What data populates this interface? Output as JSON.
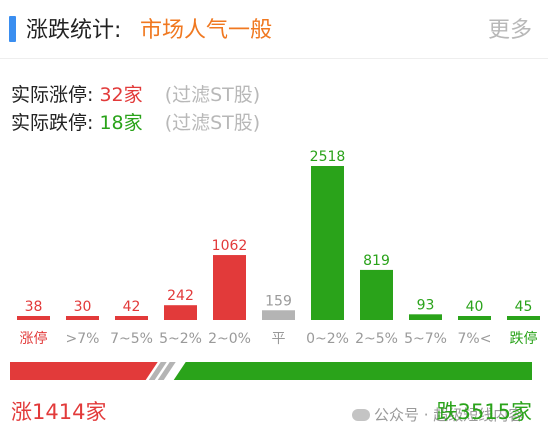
{
  "header": {
    "title": "涨跌统计:",
    "sentiment": "市场人气一般",
    "more_label": "更多"
  },
  "stats": {
    "limit_up_label": "实际涨停:",
    "limit_up_count": "32家",
    "limit_up_note": "(过滤ST股)",
    "limit_down_label": "实际跌停:",
    "limit_down_count": "18家",
    "limit_down_note": "(过滤ST股)"
  },
  "chart_data": {
    "type": "bar",
    "categories": [
      "涨停",
      ">7%",
      "7~5%",
      "5~2%",
      "2~0%",
      "平",
      "0~2%",
      "2~5%",
      "5~7%",
      "7%<",
      "跌停"
    ],
    "values": [
      38,
      30,
      42,
      242,
      1062,
      159,
      2518,
      819,
      93,
      40,
      45
    ],
    "bar_colors": [
      "#e23a3a",
      "#e23a3a",
      "#e23a3a",
      "#e23a3a",
      "#e23a3a",
      "#b4b4b4",
      "#2aa31a",
      "#2aa31a",
      "#2aa31a",
      "#2aa31a",
      "#2aa31a"
    ],
    "label_colors": [
      "#e23a3a",
      "#e23a3a",
      "#e23a3a",
      "#e23a3a",
      "#e23a3a",
      "#9a9a9a",
      "#2aa31a",
      "#2aa31a",
      "#2aa31a",
      "#2aa31a",
      "#2aa31a"
    ],
    "category_colors": [
      "#e23a3a",
      "#9a9a9a",
      "#9a9a9a",
      "#9a9a9a",
      "#9a9a9a",
      "#9a9a9a",
      "#9a9a9a",
      "#9a9a9a",
      "#9a9a9a",
      "#9a9a9a",
      "#2aa31a"
    ],
    "ylim": [
      0,
      2518
    ]
  },
  "split": {
    "up": 1414,
    "down": 3515,
    "up_color": "#e23a3a",
    "down_color": "#2aa31a",
    "flat_color": "#b4b4b4"
  },
  "footer": {
    "up_text": "涨1414家",
    "down_text": "跌3515家",
    "watermark": "公众号 · 超级短线内容"
  },
  "colors": {
    "accent": "#3a8ef0",
    "sentiment": "#f07820",
    "red": "#e23a3a",
    "green": "#2aa31a",
    "muted": "#b8b8b8"
  }
}
